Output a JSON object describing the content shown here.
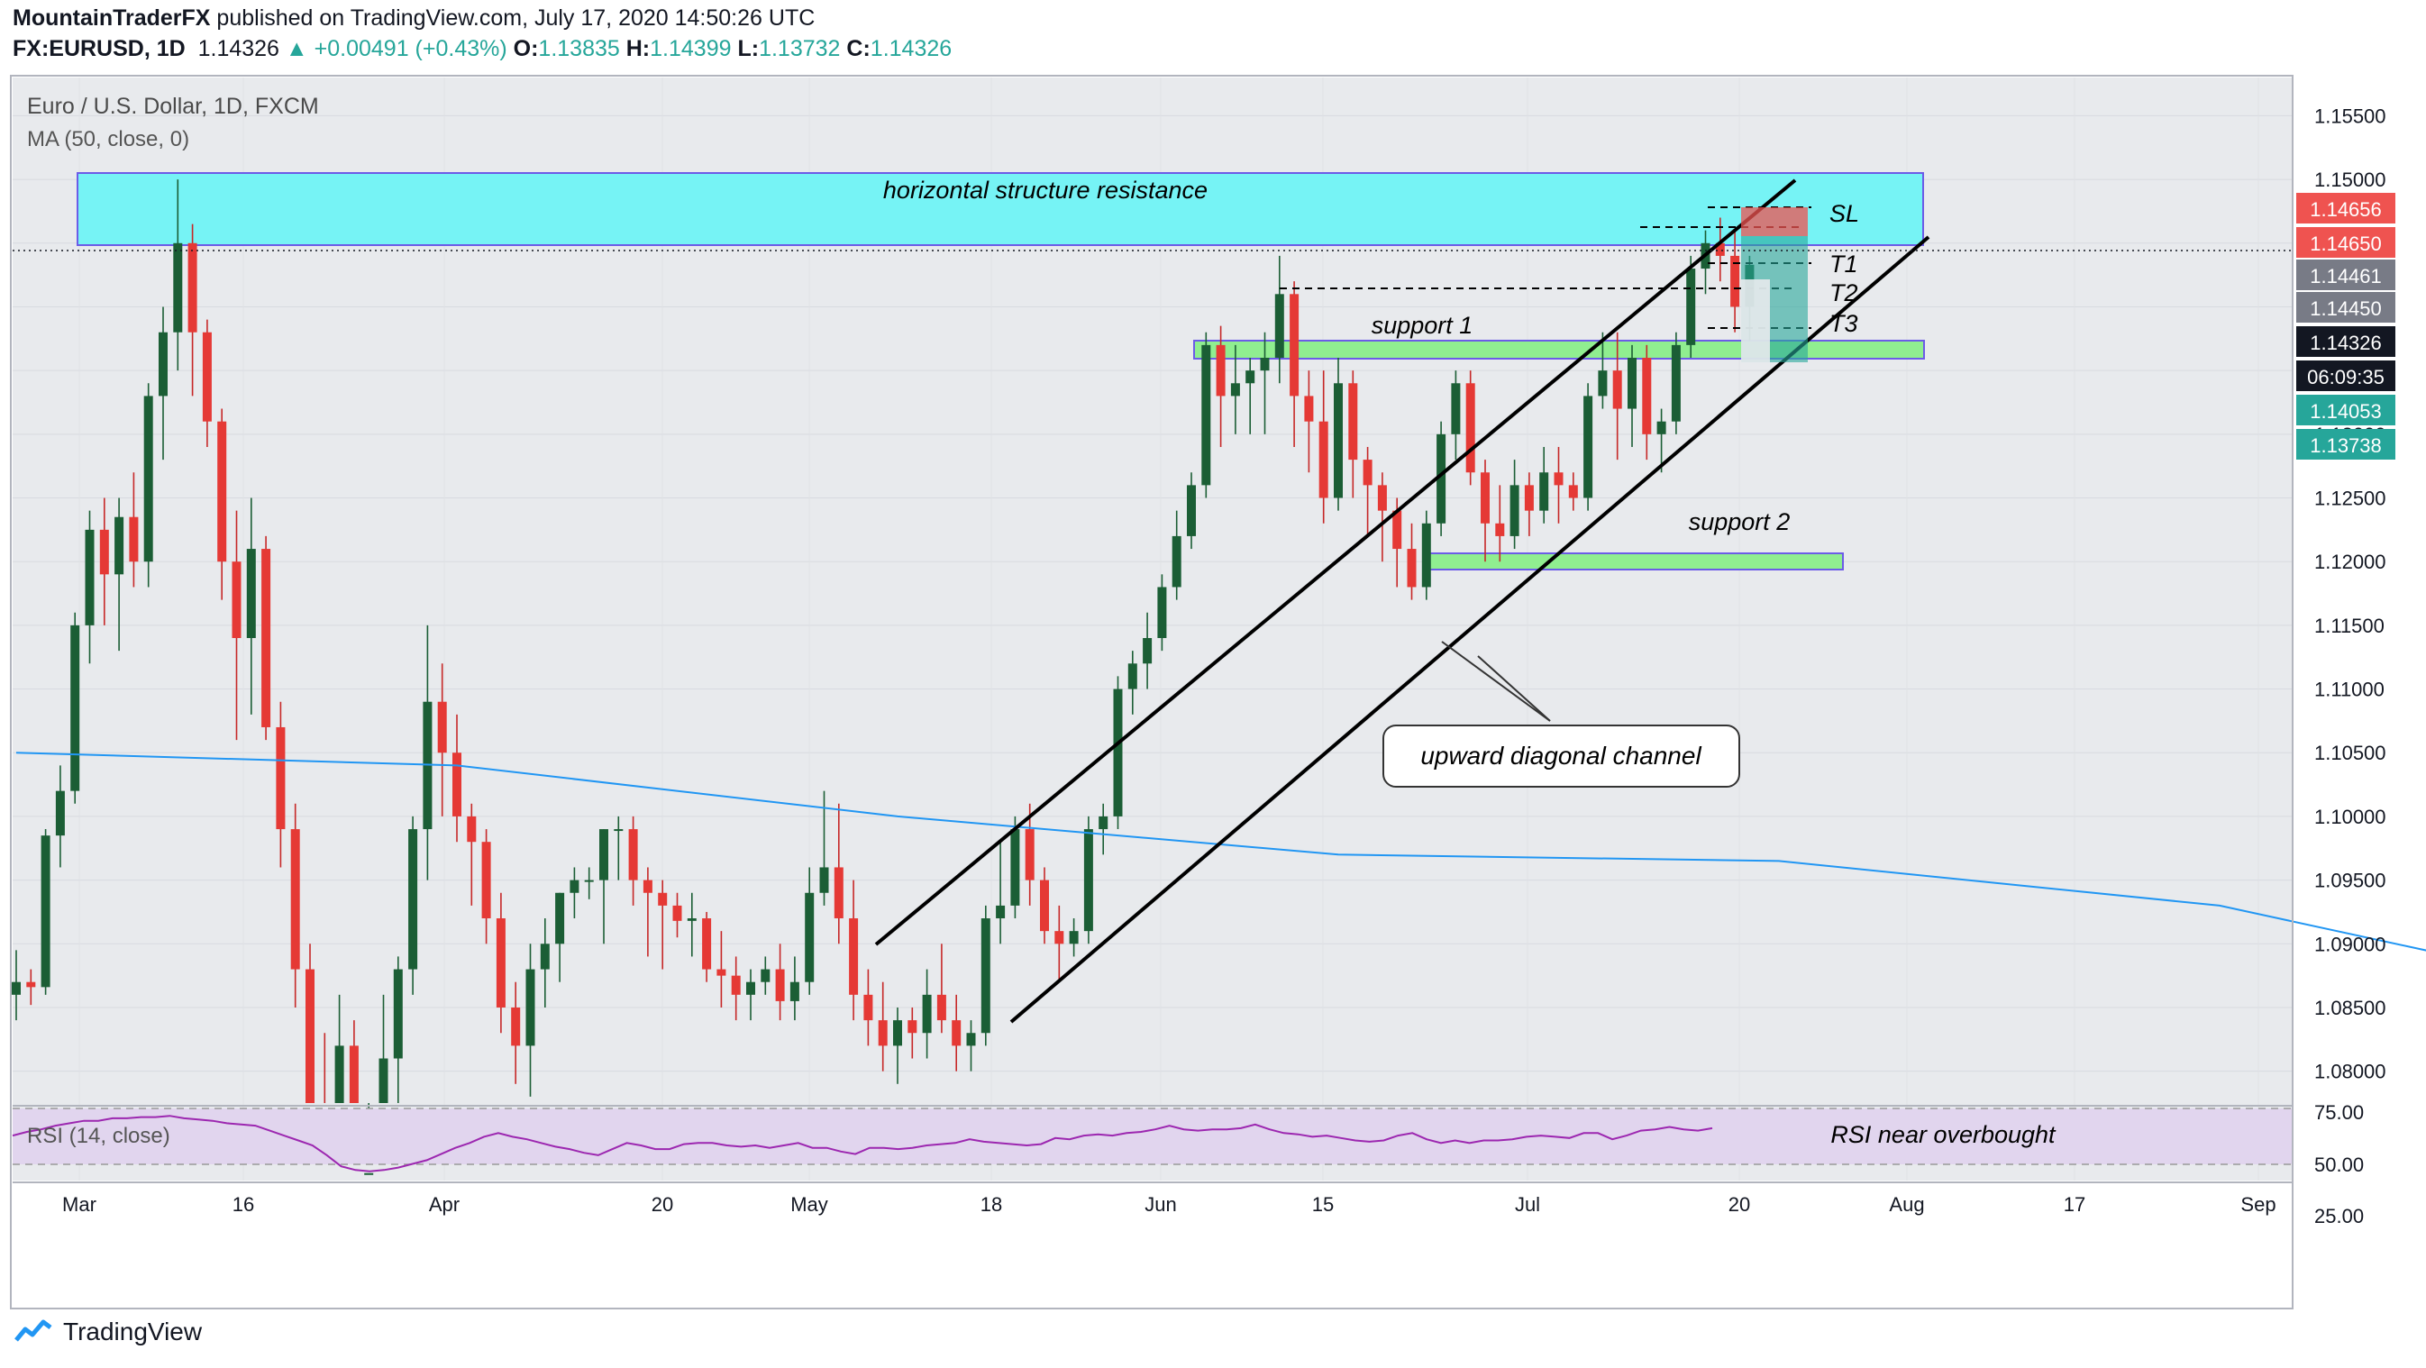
{
  "header": {
    "author": "MountainTraderFX",
    "published_text": "published on TradingView.com, July 17, 2020 14:50:26 UTC",
    "symbol": "FX:EURUSD, 1D",
    "last": "1.14326",
    "change_arrow": "▲",
    "change": "+0.00491 (+0.43%)",
    "o_label": "O:",
    "o": "1.13835",
    "h_label": "H:",
    "h": "1.14399",
    "l_label": "L:",
    "l": "1.13732",
    "c_label": "C:",
    "c": "1.14326"
  },
  "legend": {
    "title": "Euro / U.S. Dollar, 1D, FXCM",
    "ma": "MA (50, close, 0)",
    "rsi": "RSI (14, close)"
  },
  "footer": {
    "brand": "TradingView",
    "logo_icon": "tradingview-logo-icon"
  },
  "colors": {
    "up": "#26a69a",
    "down": "#ef5350",
    "body_up": "#1b5e35",
    "body_down": "#e53935",
    "ma": "#2196f3",
    "resistance": "#76f3f5",
    "support": "#90ee90",
    "rsi_band": "#e1d5ee",
    "rsi_line": "#9c27b0",
    "bg": "#e8eaed"
  },
  "chart_data": [
    {
      "type": "candlestick",
      "title": "Euro / U.S. Dollar, 1D, FXCM",
      "series": [
        {
          "name": "FX:EURUSD",
          "note": "approximate daily OHLC read from chart"
        },
        {
          "name": "MA (50, close, 0)"
        }
      ],
      "x_ticks": [
        "Mar",
        "16",
        "Apr",
        "20",
        "May",
        "18",
        "Jun",
        "15",
        "Jul",
        "20",
        "Aug",
        "17",
        "Sep"
      ],
      "y_ticks": [
        "1.08000",
        "1.08500",
        "1.09000",
        "1.09500",
        "1.10000",
        "1.10500",
        "1.11000",
        "1.11500",
        "1.12000",
        "1.12500",
        "1.13000",
        "1.13500",
        "1.14000",
        "1.14500",
        "1.15000",
        "1.15500"
      ],
      "ylim": [
        1.0775,
        1.158
      ],
      "price_labels": [
        {
          "value": "1.14656",
          "color": "#ef5350"
        },
        {
          "value": "1.14650",
          "color": "#ef5350"
        },
        {
          "value": "1.14461",
          "color": "#787b86"
        },
        {
          "value": "1.14450",
          "color": "#787b86"
        },
        {
          "value": "1.14326",
          "color": "#131722"
        },
        {
          "value": "06:09:35",
          "color": "#131722"
        },
        {
          "value": "1.14053",
          "color": "#26a69a"
        },
        {
          "value": "1.13738",
          "color": "#26a69a"
        }
      ],
      "annotations": {
        "resistance": "horizontal structure resistance",
        "support1": "support 1",
        "support2": "support 2",
        "channel": "upward diagonal channel",
        "sl": "SL",
        "t1": "T1",
        "t2": "T2",
        "t3": "T3"
      },
      "candles": [
        [
          1.086,
          1.0895,
          1.084,
          1.087
        ],
        [
          1.087,
          1.088,
          1.0852,
          1.0866
        ],
        [
          1.0866,
          1.099,
          1.086,
          1.0985
        ],
        [
          1.0985,
          1.104,
          1.096,
          1.102
        ],
        [
          1.102,
          1.116,
          1.101,
          1.115
        ],
        [
          1.115,
          1.124,
          1.112,
          1.1225
        ],
        [
          1.1225,
          1.125,
          1.115,
          1.119
        ],
        [
          1.119,
          1.125,
          1.113,
          1.1235
        ],
        [
          1.1235,
          1.127,
          1.118,
          1.12
        ],
        [
          1.12,
          1.134,
          1.118,
          1.133
        ],
        [
          1.133,
          1.14,
          1.128,
          1.138
        ],
        [
          1.138,
          1.15,
          1.135,
          1.145
        ],
        [
          1.145,
          1.1465,
          1.133,
          1.138
        ],
        [
          1.138,
          1.139,
          1.129,
          1.131
        ],
        [
          1.131,
          1.132,
          1.117,
          1.12
        ],
        [
          1.12,
          1.124,
          1.106,
          1.114
        ],
        [
          1.114,
          1.125,
          1.108,
          1.121
        ],
        [
          1.121,
          1.122,
          1.106,
          1.107
        ],
        [
          1.107,
          1.109,
          1.096,
          1.099
        ],
        [
          1.099,
          1.101,
          1.085,
          1.088
        ],
        [
          1.088,
          1.09,
          1.07,
          1.074
        ],
        [
          1.074,
          1.083,
          1.071,
          1.073
        ],
        [
          1.073,
          1.086,
          1.068,
          1.082
        ],
        [
          1.082,
          1.084,
          1.065,
          1.069
        ],
        [
          1.069,
          1.075,
          1.066,
          1.072
        ],
        [
          1.072,
          1.086,
          1.07,
          1.081
        ],
        [
          1.081,
          1.089,
          1.077,
          1.088
        ],
        [
          1.088,
          1.1,
          1.086,
          1.099
        ],
        [
          1.099,
          1.115,
          1.095,
          1.109
        ],
        [
          1.109,
          1.112,
          1.1,
          1.105
        ],
        [
          1.105,
          1.108,
          1.098,
          1.1
        ],
        [
          1.1,
          1.101,
          1.093,
          1.098
        ],
        [
          1.098,
          1.099,
          1.09,
          1.092
        ],
        [
          1.092,
          1.094,
          1.083,
          1.085
        ],
        [
          1.085,
          1.087,
          1.079,
          1.082
        ],
        [
          1.082,
          1.09,
          1.078,
          1.088
        ],
        [
          1.088,
          1.092,
          1.085,
          1.09
        ],
        [
          1.09,
          1.094,
          1.087,
          1.094
        ],
        [
          1.094,
          1.096,
          1.092,
          1.095
        ],
        [
          1.095,
          1.096,
          1.0935,
          1.095
        ],
        [
          1.095,
          1.099,
          1.09,
          1.099
        ],
        [
          1.099,
          1.1,
          1.095,
          1.099
        ],
        [
          1.099,
          1.1,
          1.093,
          1.095
        ],
        [
          1.095,
          1.096,
          1.089,
          1.094
        ],
        [
          1.094,
          1.095,
          1.088,
          1.093
        ],
        [
          1.093,
          1.094,
          1.0905,
          1.0918
        ],
        [
          1.0918,
          1.094,
          1.089,
          1.092
        ],
        [
          1.092,
          1.0925,
          1.087,
          1.088
        ],
        [
          1.088,
          1.091,
          1.085,
          1.0875
        ],
        [
          1.0875,
          1.089,
          1.084,
          1.086
        ],
        [
          1.086,
          1.088,
          1.084,
          1.087
        ],
        [
          1.087,
          1.089,
          1.086,
          1.088
        ],
        [
          1.088,
          1.09,
          1.084,
          1.0855
        ],
        [
          1.0855,
          1.089,
          1.084,
          1.087
        ],
        [
          1.087,
          1.096,
          1.086,
          1.094
        ],
        [
          1.094,
          1.102,
          1.093,
          1.096
        ],
        [
          1.096,
          1.101,
          1.09,
          1.092
        ],
        [
          1.092,
          1.095,
          1.084,
          1.086
        ],
        [
          1.086,
          1.088,
          1.082,
          1.084
        ],
        [
          1.084,
          1.087,
          1.08,
          1.082
        ],
        [
          1.082,
          1.085,
          1.079,
          1.084
        ],
        [
          1.084,
          1.085,
          1.081,
          1.083
        ],
        [
          1.083,
          1.088,
          1.081,
          1.086
        ],
        [
          1.086,
          1.09,
          1.083,
          1.084
        ],
        [
          1.084,
          1.086,
          1.08,
          1.082
        ],
        [
          1.082,
          1.084,
          1.08,
          1.083
        ],
        [
          1.083,
          1.093,
          1.082,
          1.092
        ],
        [
          1.092,
          1.098,
          1.09,
          1.093
        ],
        [
          1.093,
          1.1,
          1.092,
          1.099
        ],
        [
          1.099,
          1.101,
          1.093,
          1.095
        ],
        [
          1.095,
          1.096,
          1.09,
          1.091
        ],
        [
          1.091,
          1.093,
          1.087,
          1.09
        ],
        [
          1.09,
          1.092,
          1.089,
          1.091
        ],
        [
          1.091,
          1.1,
          1.09,
          1.099
        ],
        [
          1.099,
          1.101,
          1.097,
          1.1
        ],
        [
          1.1,
          1.111,
          1.099,
          1.11
        ],
        [
          1.11,
          1.113,
          1.108,
          1.112
        ],
        [
          1.112,
          1.116,
          1.11,
          1.114
        ],
        [
          1.114,
          1.119,
          1.113,
          1.118
        ],
        [
          1.118,
          1.124,
          1.117,
          1.122
        ],
        [
          1.122,
          1.127,
          1.121,
          1.126
        ],
        [
          1.126,
          1.138,
          1.125,
          1.137
        ],
        [
          1.137,
          1.1385,
          1.129,
          1.133
        ],
        [
          1.133,
          1.137,
          1.13,
          1.134
        ],
        [
          1.134,
          1.136,
          1.13,
          1.135
        ],
        [
          1.135,
          1.138,
          1.13,
          1.136
        ],
        [
          1.136,
          1.144,
          1.134,
          1.141
        ],
        [
          1.141,
          1.142,
          1.129,
          1.133
        ],
        [
          1.133,
          1.135,
          1.127,
          1.131
        ],
        [
          1.131,
          1.135,
          1.123,
          1.125
        ],
        [
          1.125,
          1.136,
          1.124,
          1.134
        ],
        [
          1.134,
          1.135,
          1.125,
          1.128
        ],
        [
          1.128,
          1.129,
          1.122,
          1.126
        ],
        [
          1.126,
          1.127,
          1.12,
          1.124
        ],
        [
          1.124,
          1.125,
          1.118,
          1.121
        ],
        [
          1.121,
          1.123,
          1.117,
          1.118
        ],
        [
          1.118,
          1.124,
          1.117,
          1.123
        ],
        [
          1.123,
          1.131,
          1.122,
          1.13
        ],
        [
          1.13,
          1.135,
          1.128,
          1.134
        ],
        [
          1.134,
          1.135,
          1.126,
          1.127
        ],
        [
          1.127,
          1.128,
          1.12,
          1.123
        ],
        [
          1.123,
          1.126,
          1.12,
          1.122
        ],
        [
          1.122,
          1.128,
          1.121,
          1.126
        ],
        [
          1.126,
          1.127,
          1.122,
          1.124
        ],
        [
          1.124,
          1.129,
          1.123,
          1.127
        ],
        [
          1.127,
          1.129,
          1.123,
          1.126
        ],
        [
          1.126,
          1.127,
          1.124,
          1.125
        ],
        [
          1.125,
          1.134,
          1.124,
          1.133
        ],
        [
          1.133,
          1.138,
          1.132,
          1.135
        ],
        [
          1.135,
          1.138,
          1.128,
          1.132
        ],
        [
          1.132,
          1.137,
          1.129,
          1.136
        ],
        [
          1.136,
          1.137,
          1.128,
          1.13
        ],
        [
          1.13,
          1.132,
          1.127,
          1.131
        ],
        [
          1.131,
          1.138,
          1.13,
          1.137
        ],
        [
          1.137,
          1.144,
          1.136,
          1.143
        ],
        [
          1.143,
          1.146,
          1.141,
          1.145
        ],
        [
          1.145,
          1.147,
          1.142,
          1.144
        ],
        [
          1.144,
          1.146,
          1.138,
          1.14
        ],
        [
          1.14,
          1.144,
          1.1373,
          1.1433
        ]
      ],
      "ma": [
        [
          0,
          1.105
        ],
        [
          30,
          1.104
        ],
        [
          60,
          1.1
        ],
        [
          90,
          1.097
        ],
        [
          120,
          1.0965
        ],
        [
          150,
          1.093
        ],
        [
          170,
          1.088
        ],
        [
          190,
          1.087
        ],
        [
          210,
          1.093
        ],
        [
          240,
          1.102
        ],
        [
          270,
          1.113
        ],
        [
          300,
          1.12
        ],
        [
          330,
          1.133
        ],
        [
          360,
          1.14
        ],
        [
          380,
          1.1473
        ]
      ],
      "rsi": {
        "ylim": [
          20,
          80
        ],
        "y_ticks": [
          "75.00",
          "50.00",
          "25.00"
        ],
        "values": [
          58,
          61,
          63,
          66,
          68,
          70,
          70,
          72,
          72,
          73,
          73,
          74,
          72,
          71,
          70,
          68,
          67,
          66,
          62,
          58,
          54,
          50,
          42,
          33,
          30,
          29,
          30,
          32,
          35,
          38,
          43,
          48,
          52,
          57,
          60,
          57,
          55,
          52,
          49,
          47,
          44,
          42,
          47,
          52,
          50,
          47,
          47,
          51,
          52,
          52,
          50,
          49,
          50,
          48,
          50,
          52,
          48,
          48,
          45,
          43,
          48,
          48,
          47,
          48,
          50,
          51,
          52,
          55,
          53,
          52,
          51,
          50,
          51,
          56,
          55,
          58,
          59,
          58,
          60,
          61,
          63,
          66,
          63,
          62,
          63,
          63,
          64,
          67,
          63,
          60,
          59,
          57,
          58,
          56,
          54,
          53,
          54,
          58,
          60,
          55,
          52,
          54,
          52,
          54,
          54,
          55,
          57,
          58,
          57,
          56,
          60,
          60,
          55,
          58,
          62,
          63,
          65,
          63,
          62,
          64
        ]
      },
      "rsi_annotation": "RSI near overbought"
    }
  ]
}
